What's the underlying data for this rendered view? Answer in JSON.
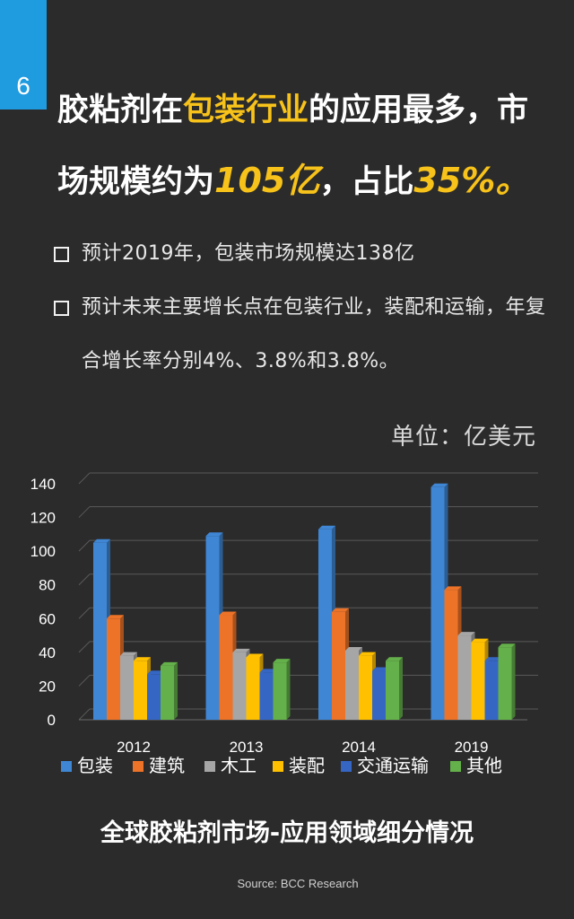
{
  "page_number": "6",
  "headline": {
    "line1_a": "胶粘剂在",
    "line1_highlight": "包装行业",
    "line1_b": "的应用最多，市",
    "line2_a": "场规模约为",
    "line2_highlight1": "105亿",
    "line2_b": "，占比",
    "line2_highlight2": "35%。"
  },
  "bullets": [
    "预计2019年，包装市场规模达138亿",
    "预计未来主要增长点在包装行业，装配和运输，年复合增长率分别4%、3.8%和3.8%。"
  ],
  "unit_label": "单位：亿美元",
  "chart_title": "全球胶粘剂市场-应用领域细分情况",
  "source": "Source: BCC Research",
  "colors": {
    "background": "#2b2b2b",
    "accent": "#f7c21a",
    "page_tab": "#1f9be0"
  },
  "chart_data": {
    "type": "bar",
    "categories": [
      "2012",
      "2013",
      "2014",
      "2019"
    ],
    "series": [
      {
        "name": "包装",
        "values": [
          105,
          109,
          113,
          138
        ],
        "color": "#3f86d4"
      },
      {
        "name": "建筑",
        "values": [
          60,
          62,
          64,
          77
        ],
        "color": "#ed7328"
      },
      {
        "name": "木工",
        "values": [
          38,
          40,
          41,
          50
        ],
        "color": "#a6a6a6"
      },
      {
        "name": "装配",
        "values": [
          35,
          37,
          38,
          46
        ],
        "color": "#ffc000"
      },
      {
        "name": "交通运输",
        "values": [
          27,
          28,
          29,
          35
        ],
        "color": "#3566c4"
      },
      {
        "name": "其他",
        "values": [
          32,
          34,
          35,
          43
        ],
        "color": "#64b04a"
      }
    ],
    "ylim": [
      0,
      140
    ],
    "yticks": [
      0,
      20,
      40,
      60,
      80,
      100,
      120,
      140
    ],
    "grid": true,
    "legend_position": "bottom",
    "style": "3d-column"
  }
}
